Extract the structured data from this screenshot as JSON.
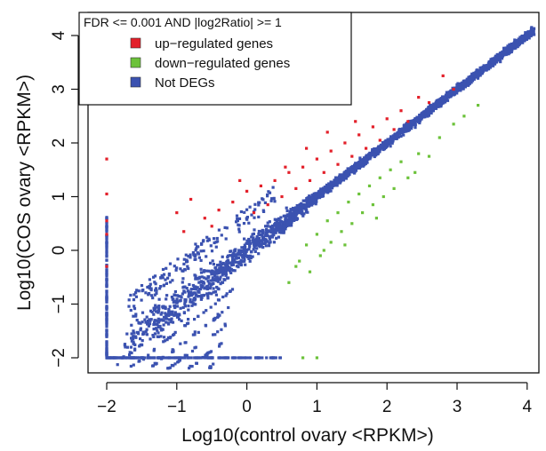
{
  "chart_data": {
    "type": "scatter",
    "xlabel": "Log10(control ovary <RPKM>)",
    "ylabel": "Log10(COS ovary <RPKM>)",
    "xlim": [
      -2.3,
      4.2
    ],
    "ylim": [
      -2.2,
      4.3
    ],
    "x_ticks": [
      -2,
      -1,
      0,
      1,
      2,
      3,
      4
    ],
    "y_ticks": [
      -2,
      -1,
      0,
      1,
      2,
      3,
      4
    ],
    "x_tick_labels": [
      "−2",
      "−1",
      "0",
      "1",
      "2",
      "3",
      "4"
    ],
    "y_tick_labels": [
      "−2",
      "−1",
      "0",
      "1",
      "2",
      "3",
      "4"
    ],
    "grid": false,
    "legend": {
      "placement": "top-left",
      "title": "FDR <= 0.001 AND |log2Ratio| >= 1",
      "entries": [
        {
          "label": "up−regulated genes",
          "color": "#e3202a"
        },
        {
          "label": "down−regulated genes",
          "color": "#6cc23a"
        },
        {
          "label": "Not DEGs",
          "color": "#3b52b0"
        }
      ]
    },
    "series": [
      {
        "name": "up−regulated genes",
        "color": "#e3202a",
        "points": [
          [
            -2.0,
            1.7
          ],
          [
            -2.0,
            1.05
          ],
          [
            -2.0,
            0.55
          ],
          [
            -2.0,
            0.3
          ],
          [
            -2.0,
            -0.3
          ],
          [
            -1.0,
            0.7
          ],
          [
            -0.9,
            0.35
          ],
          [
            -0.8,
            0.95
          ],
          [
            -0.6,
            0.6
          ],
          [
            -0.5,
            0.45
          ],
          [
            -0.4,
            0.75
          ],
          [
            -0.2,
            0.9
          ],
          [
            0.0,
            1.1
          ],
          [
            0.1,
            0.7
          ],
          [
            0.2,
            1.2
          ],
          [
            0.3,
            0.85
          ],
          [
            0.4,
            1.3
          ],
          [
            0.5,
            1.0
          ],
          [
            0.6,
            1.45
          ],
          [
            0.7,
            1.15
          ],
          [
            0.8,
            1.55
          ],
          [
            0.9,
            1.3
          ],
          [
            1.0,
            1.7
          ],
          [
            1.1,
            1.45
          ],
          [
            1.2,
            1.85
          ],
          [
            1.3,
            1.6
          ],
          [
            1.4,
            2.0
          ],
          [
            1.5,
            1.75
          ],
          [
            1.6,
            2.15
          ],
          [
            1.7,
            1.9
          ],
          [
            1.8,
            2.3
          ],
          [
            1.9,
            2.05
          ],
          [
            2.0,
            2.45
          ],
          [
            2.1,
            2.25
          ],
          [
            2.2,
            2.6
          ],
          [
            2.3,
            2.4
          ],
          [
            2.45,
            2.85
          ],
          [
            2.6,
            2.75
          ],
          [
            2.8,
            3.25
          ],
          [
            2.95,
            3.0
          ],
          [
            1.15,
            2.2
          ],
          [
            0.55,
            1.55
          ],
          [
            -0.1,
            1.3
          ],
          [
            0.85,
            1.9
          ],
          [
            1.55,
            2.4
          ]
        ]
      },
      {
        "name": "down−regulated genes",
        "color": "#6cc23a",
        "points": [
          [
            0.6,
            -0.6
          ],
          [
            0.75,
            -0.2
          ],
          [
            0.85,
            0.1
          ],
          [
            0.9,
            -0.4
          ],
          [
            1.0,
            0.3
          ],
          [
            1.05,
            -0.1
          ],
          [
            1.15,
            0.55
          ],
          [
            1.2,
            0.15
          ],
          [
            1.3,
            0.7
          ],
          [
            1.35,
            0.35
          ],
          [
            1.45,
            0.9
          ],
          [
            1.5,
            0.5
          ],
          [
            1.6,
            1.05
          ],
          [
            1.65,
            0.7
          ],
          [
            1.75,
            1.2
          ],
          [
            1.8,
            0.85
          ],
          [
            1.9,
            1.35
          ],
          [
            1.95,
            1.0
          ],
          [
            2.05,
            1.5
          ],
          [
            2.1,
            1.15
          ],
          [
            2.2,
            1.65
          ],
          [
            2.3,
            1.35
          ],
          [
            2.45,
            1.8
          ],
          [
            2.6,
            1.75
          ],
          [
            2.75,
            2.1
          ],
          [
            2.95,
            2.35
          ],
          [
            3.1,
            2.5
          ],
          [
            3.3,
            2.7
          ],
          [
            1.0,
            -2.0
          ],
          [
            0.8,
            -2.0
          ],
          [
            0.7,
            -0.3
          ],
          [
            1.4,
            0.1
          ],
          [
            1.1,
            0.0
          ],
          [
            1.85,
            0.6
          ],
          [
            2.4,
            1.45
          ]
        ]
      },
      {
        "name": "Not DEGs",
        "color": "#3b52b0",
        "trend": "dense cloud along y ≈ x from about (−2, −2) to (4.1, 4.1), plus vertical strip at x = −2 and horizontal strip at y = −2"
      }
    ]
  }
}
